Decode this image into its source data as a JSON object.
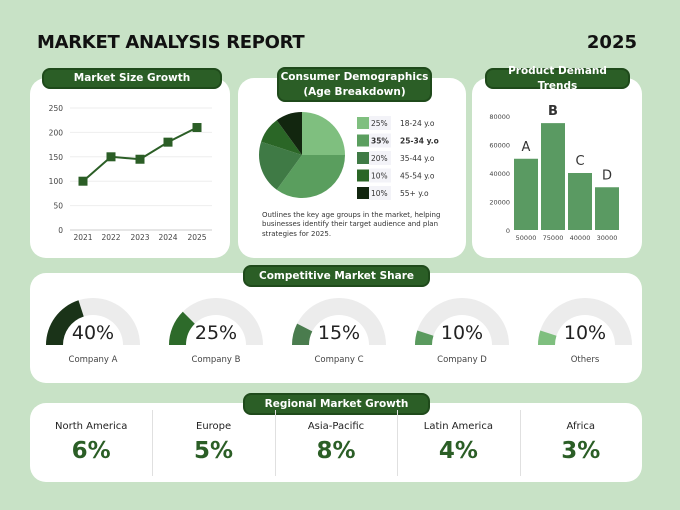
{
  "header": {
    "title": "MARKET ANALYSIS REPORT",
    "year": "2025"
  },
  "colors": {
    "background": "#c8e2c6",
    "pill": "#2b5e26",
    "accent": "#2b5e26"
  },
  "market_size": {
    "title": "Market Size Growth"
  },
  "demographics": {
    "title_line1": "Consumer Demographics",
    "title_line2": "(Age Breakdown)",
    "description": "Outlines the key age groups in the market, helping businesses identify their target audience and plan strategies for 2025."
  },
  "product_demand": {
    "title": "Product Demand Trends"
  },
  "market_share": {
    "title": "Competitive Market Share"
  },
  "regional": {
    "title": "Regional Market Growth",
    "items": [
      {
        "name": "North America",
        "value": "6%"
      },
      {
        "name": "Europe",
        "value": "5%"
      },
      {
        "name": "Asia-Pacific",
        "value": "8%"
      },
      {
        "name": "Latin America",
        "value": "4%"
      },
      {
        "name": "Africa",
        "value": "3%"
      }
    ]
  },
  "chart_data": [
    {
      "type": "line",
      "title": "Market Size Growth",
      "x": [
        "2021",
        "2022",
        "2023",
        "2024",
        "2025"
      ],
      "values": [
        100,
        150,
        145,
        180,
        210
      ],
      "ylim": [
        0,
        250
      ],
      "yticks": [
        "0",
        "50",
        "100",
        "150",
        "200",
        "250"
      ],
      "grid": true,
      "color": "#2b5e26"
    },
    {
      "type": "pie",
      "title": "Consumer Demographics (Age Breakdown)",
      "slices": [
        {
          "label": "18-24 y.o",
          "pct": "25%",
          "value": 25,
          "color": "#7fbf7f"
        },
        {
          "label": "25-34 y.o",
          "pct": "35%",
          "value": 35,
          "color": "#5a9e5e",
          "highlight": true
        },
        {
          "label": "35-44 y.o",
          "pct": "20%",
          "value": 20,
          "color": "#3f7a45"
        },
        {
          "label": "45-54 y.o",
          "pct": "10%",
          "value": 10,
          "color": "#2a6626"
        },
        {
          "label": "55+ y.o",
          "pct": "10%",
          "value": 10,
          "color": "#12260f"
        }
      ]
    },
    {
      "type": "bar",
      "title": "Product Demand Trends",
      "categories": [
        "50000",
        "75000",
        "40000",
        "30000"
      ],
      "bar_labels": [
        "A",
        "B",
        "C",
        "D"
      ],
      "values": [
        50000,
        75000,
        40000,
        30000
      ],
      "ylim": [
        0,
        80000
      ],
      "yticks": [
        "0",
        "20000",
        "40000",
        "60000",
        "80000"
      ],
      "color": "#5a9a62"
    },
    {
      "type": "gauge",
      "title": "Competitive Market Share",
      "items": [
        {
          "label": "Company A",
          "pct": "40%",
          "value": 40,
          "color": "#1a3318"
        },
        {
          "label": "Company B",
          "pct": "25%",
          "value": 25,
          "color": "#2d6a2a"
        },
        {
          "label": "Company C",
          "pct": "15%",
          "value": 15,
          "color": "#4a7c4e"
        },
        {
          "label": "Company D",
          "pct": "10%",
          "value": 10,
          "color": "#5a9a5e"
        },
        {
          "label": "Others",
          "pct": "10%",
          "value": 10,
          "color": "#7fbf7f"
        }
      ]
    }
  ]
}
